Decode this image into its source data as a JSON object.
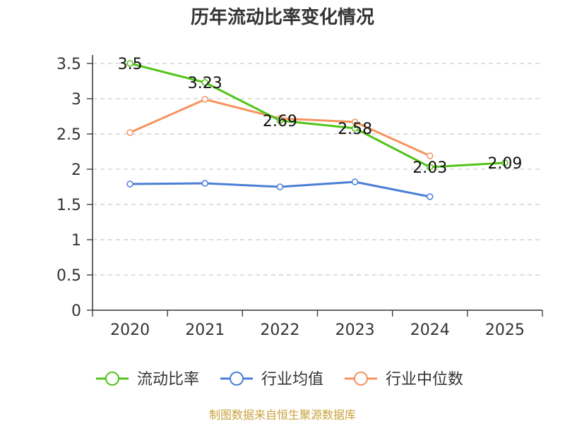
{
  "chart_data": {
    "type": "line",
    "title": "历年流动比率变化情况",
    "categories": [
      "2020",
      "2021",
      "2022",
      "2023",
      "2024",
      "2025"
    ],
    "ylim": [
      0,
      3.5
    ],
    "yticks": [
      "0",
      "0.5",
      "1",
      "1.5",
      "2",
      "2.5",
      "3",
      "3.5"
    ],
    "grid": true,
    "legend_position": "bottom",
    "series": [
      {
        "name": "流动比率",
        "color": "#52c41a",
        "values": [
          3.5,
          3.23,
          2.69,
          2.58,
          2.03,
          2.09
        ],
        "labels": [
          "3.5",
          "3.23",
          "2.69",
          "2.58",
          "2.03",
          "2.09"
        ]
      },
      {
        "name": "行业均值",
        "color": "#4a7fd6",
        "values": [
          1.79,
          1.8,
          1.75,
          1.82,
          1.61,
          null
        ]
      },
      {
        "name": "行业中位数",
        "color": "#f59460",
        "values": [
          2.52,
          2.99,
          2.72,
          2.67,
          2.19,
          null
        ]
      }
    ]
  },
  "footer": {
    "source": "制图数据来自恒生聚源数据库"
  }
}
